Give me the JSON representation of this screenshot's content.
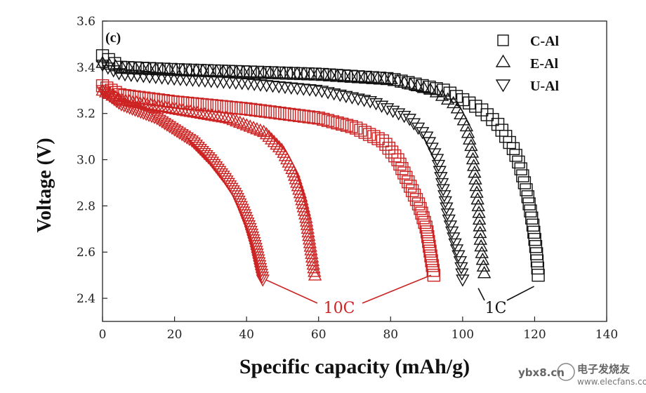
{
  "chart_data": {
    "type": "scatter",
    "panel_label": "(c)",
    "xlabel": "Specific capacity (mAh/g)",
    "ylabel": "Voltage (V)",
    "xlim": [
      0,
      140
    ],
    "ylim": [
      2.3,
      3.6
    ],
    "x_ticks": [
      0,
      20,
      40,
      60,
      80,
      100,
      120,
      140
    ],
    "y_ticks": [
      2.4,
      2.6,
      2.8,
      3.0,
      3.2,
      3.4,
      3.6
    ],
    "y_tick_labels": [
      "2.4",
      "2.6",
      "2.8",
      "3.0",
      "3.2",
      "3.4",
      "3.6"
    ],
    "legend": [
      {
        "name": "C-Al",
        "marker": "square"
      },
      {
        "name": "E-Al",
        "marker": "triangle-up"
      },
      {
        "name": "U-Al",
        "marker": "triangle-down"
      }
    ],
    "annotations": [
      {
        "text": "10C",
        "color": "#cc2222",
        "targets": [
          [
            45,
            2.48
          ],
          [
            92,
            2.5
          ]
        ]
      },
      {
        "text": "1C",
        "color": "#111111",
        "targets": [
          [
            102,
            2.45
          ],
          [
            121,
            2.47
          ]
        ]
      }
    ],
    "series": [
      {
        "name": "C-Al 1C",
        "rate": "1C",
        "marker": "square",
        "color": "#111111",
        "points": [
          [
            0,
            3.45
          ],
          [
            5,
            3.4
          ],
          [
            20,
            3.39
          ],
          [
            40,
            3.38
          ],
          [
            60,
            3.37
          ],
          [
            80,
            3.35
          ],
          [
            95,
            3.3
          ],
          [
            105,
            3.22
          ],
          [
            110,
            3.15
          ],
          [
            114,
            3.05
          ],
          [
            116,
            2.97
          ],
          [
            118,
            2.85
          ],
          [
            119.5,
            2.72
          ],
          [
            120.5,
            2.6
          ],
          [
            121,
            2.5
          ]
        ]
      },
      {
        "name": "E-Al 1C",
        "rate": "1C",
        "marker": "triangle-up",
        "color": "#111111",
        "points": [
          [
            0,
            3.42
          ],
          [
            5,
            3.4
          ],
          [
            20,
            3.39
          ],
          [
            40,
            3.38
          ],
          [
            60,
            3.37
          ],
          [
            80,
            3.35
          ],
          [
            92,
            3.3
          ],
          [
            98,
            3.24
          ],
          [
            101,
            3.15
          ],
          [
            102.5,
            3.05
          ],
          [
            103.5,
            2.92
          ],
          [
            104.5,
            2.78
          ],
          [
            105,
            2.64
          ],
          [
            106,
            2.51
          ]
        ]
      },
      {
        "name": "U-Al 1C",
        "rate": "1C",
        "marker": "triangle-down",
        "color": "#111111",
        "points": [
          [
            0,
            3.41
          ],
          [
            5,
            3.37
          ],
          [
            20,
            3.35
          ],
          [
            40,
            3.33
          ],
          [
            60,
            3.3
          ],
          [
            75,
            3.25
          ],
          [
            85,
            3.18
          ],
          [
            90,
            3.1
          ],
          [
            93,
            3.0
          ],
          [
            94.5,
            2.88
          ],
          [
            96,
            2.75
          ],
          [
            98,
            2.63
          ],
          [
            99.5,
            2.55
          ],
          [
            100,
            2.48
          ]
        ]
      },
      {
        "name": "C-Al 10C",
        "rate": "10C",
        "marker": "square",
        "color": "#cc2222",
        "points": [
          [
            0,
            3.32
          ],
          [
            5,
            3.28
          ],
          [
            20,
            3.25
          ],
          [
            40,
            3.22
          ],
          [
            60,
            3.18
          ],
          [
            70,
            3.14
          ],
          [
            78,
            3.08
          ],
          [
            82,
            3.0
          ],
          [
            85,
            2.9
          ],
          [
            88,
            2.8
          ],
          [
            90,
            2.7
          ],
          [
            91,
            2.6
          ],
          [
            92,
            2.5
          ]
        ]
      },
      {
        "name": "E-Al 10C",
        "rate": "10C",
        "marker": "triangle-up",
        "color": "#cc2222",
        "points": [
          [
            0,
            3.3
          ],
          [
            5,
            3.26
          ],
          [
            20,
            3.22
          ],
          [
            35,
            3.18
          ],
          [
            45,
            3.12
          ],
          [
            50,
            3.04
          ],
          [
            53,
            2.95
          ],
          [
            55,
            2.85
          ],
          [
            56.5,
            2.75
          ],
          [
            57.5,
            2.65
          ],
          [
            58.5,
            2.55
          ],
          [
            59,
            2.5
          ]
        ]
      },
      {
        "name": "U-Al 10C",
        "rate": "10C",
        "marker": "triangle-down",
        "color": "#cc2222",
        "points": [
          [
            0,
            3.3
          ],
          [
            5,
            3.24
          ],
          [
            15,
            3.18
          ],
          [
            25,
            3.08
          ],
          [
            30,
            3.0
          ],
          [
            34,
            2.92
          ],
          [
            37,
            2.85
          ],
          [
            39,
            2.78
          ],
          [
            41,
            2.7
          ],
          [
            42.5,
            2.62
          ],
          [
            43.5,
            2.55
          ],
          [
            44.5,
            2.48
          ]
        ]
      }
    ]
  },
  "watermark": {
    "site": "ybx8.cn",
    "brand": "电子发烧友",
    "url": "www.elecfans.com"
  }
}
